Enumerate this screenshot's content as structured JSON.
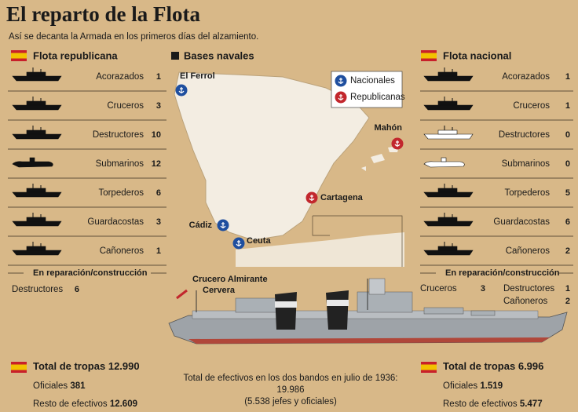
{
  "header": {
    "title": "El reparto de la Flota",
    "subtitle": "Así se decanta la Armada en los primeros días del alzamiento."
  },
  "republicana": {
    "heading": "Flota republicana",
    "rows": [
      {
        "label": "Acorazados",
        "value": 1
      },
      {
        "label": "Cruceros",
        "value": 3
      },
      {
        "label": "Destructores",
        "value": 10
      },
      {
        "label": "Submarinos",
        "value": 12
      },
      {
        "label": "Torpederos",
        "value": 6
      },
      {
        "label": "Guardacostas",
        "value": 3
      },
      {
        "label": "Cañoneros",
        "value": 1
      }
    ],
    "repair_heading": "En reparación/construcción",
    "repair_rows": [
      {
        "label": "Destructores",
        "value": 6
      }
    ],
    "total": {
      "label": "Total de tropas",
      "value": "12.990"
    },
    "officers": {
      "label": "Oficiales",
      "value": "381"
    },
    "rest": {
      "label": "Resto de efectivos",
      "value": "12.609"
    }
  },
  "nacional": {
    "heading": "Flota nacional",
    "rows": [
      {
        "label": "Acorazados",
        "value": 1
      },
      {
        "label": "Cruceros",
        "value": 1
      },
      {
        "label": "Destructores",
        "value": 0
      },
      {
        "label": "Submarinos",
        "value": 0
      },
      {
        "label": "Torpederos",
        "value": 5
      },
      {
        "label": "Guardacostas",
        "value": 6
      },
      {
        "label": "Cañoneros",
        "value": 2
      }
    ],
    "repair_heading": "En reparación/construcción",
    "repair_rows": [
      {
        "label": "Cruceros",
        "value": 3
      },
      {
        "label": "Destructores",
        "value": 1
      },
      {
        "label": "Cañoneros",
        "value": 2
      }
    ],
    "total": {
      "label": "Total de tropas",
      "value": "6.996"
    },
    "officers": {
      "label": "Oficiales",
      "value": "1.519"
    },
    "rest": {
      "label": "Resto de efectivos",
      "value": "5.477"
    }
  },
  "map": {
    "heading": "Bases navales",
    "legend": [
      {
        "label": "Nacionales",
        "color": "#1f4f9f",
        "bases": [
          "El Ferrol",
          "Cádiz",
          "Ceuta"
        ]
      },
      {
        "label": "Republicanas",
        "color": "#c2272d",
        "bases": [
          "Mahón",
          "Cartagena"
        ]
      }
    ]
  },
  "ship": {
    "caption": [
      "Crucero Almirante",
      "Cervera"
    ]
  },
  "footer": {
    "lines": [
      "Total de efectivos en los dos bandos en julio de 1936:",
      "19.986",
      "(5.538 jefes y oficiales)"
    ]
  }
}
